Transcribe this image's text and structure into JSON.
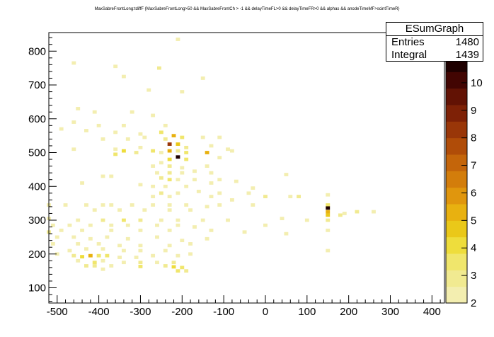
{
  "title": "MaxSabreFrontLong:tdiffF {MaxSabreFrontLong>50 && MaxSabreFrontCh > -1 && delayTimeFL>0 && delayTimeFR>0 && alphas && anodeTimeMF>scintTimeR}",
  "stats": {
    "name": "ESumGraph",
    "rows": [
      {
        "label": "Entries",
        "value": "1480"
      },
      {
        "label": "Integral",
        "value": "1439"
      }
    ]
  },
  "colors": {
    "palette": [
      "#f3eeb0",
      "#f1ea91",
      "#f0e66c",
      "#eedd3c",
      "#eac819",
      "#e8b110",
      "#e0960d",
      "#d37d0b",
      "#c4650a",
      "#b04c08",
      "#993608",
      "#7e2106",
      "#621204",
      "#420502",
      "#1e0000"
    ]
  },
  "chart_data": {
    "type": "heatmap",
    "xlim": [
      -520,
      430
    ],
    "ylim": [
      55,
      855
    ],
    "x_ticks": [
      -500,
      -400,
      -300,
      -200,
      -100,
      0,
      100,
      200,
      300,
      400
    ],
    "y_ticks": [
      100,
      200,
      300,
      400,
      500,
      600,
      700,
      800
    ],
    "z_range": [
      2,
      11
    ],
    "z_ticks": [
      2,
      3,
      4,
      5,
      6,
      7,
      8,
      9,
      10
    ],
    "z_top_partial_label": "11",
    "bin_size": [
      10,
      10
    ],
    "grid": false,
    "legend": "none",
    "cells": [
      [
        -210,
        835,
        1
      ],
      [
        -460,
        765,
        1
      ],
      [
        -360,
        755,
        1
      ],
      [
        -255,
        750,
        2
      ],
      [
        -340,
        725,
        1
      ],
      [
        -150,
        720,
        1
      ],
      [
        -280,
        685,
        1
      ],
      [
        -200,
        680,
        1
      ],
      [
        -450,
        630,
        1
      ],
      [
        -410,
        620,
        1
      ],
      [
        -320,
        620,
        1
      ],
      [
        -270,
        610,
        1
      ],
      [
        -460,
        590,
        1
      ],
      [
        -400,
        580,
        1
      ],
      [
        -340,
        580,
        1
      ],
      [
        -240,
        580,
        1
      ],
      [
        -490,
        570,
        1
      ],
      [
        -430,
        565,
        1
      ],
      [
        -360,
        560,
        1
      ],
      [
        -300,
        555,
        1
      ],
      [
        -250,
        560,
        3
      ],
      [
        -390,
        540,
        1
      ],
      [
        -330,
        540,
        1
      ],
      [
        -290,
        545,
        1
      ],
      [
        -220,
        550,
        6
      ],
      [
        -200,
        545,
        3
      ],
      [
        -150,
        545,
        1
      ],
      [
        -240,
        540,
        2
      ],
      [
        -110,
        545,
        1
      ],
      [
        -460,
        510,
        1
      ],
      [
        -360,
        510,
        1
      ],
      [
        -300,
        515,
        1
      ],
      [
        -230,
        525,
        11
      ],
      [
        -210,
        525,
        5
      ],
      [
        -190,
        515,
        2
      ],
      [
        -130,
        520,
        1
      ],
      [
        -90,
        510,
        1
      ],
      [
        -340,
        505,
        4
      ],
      [
        -270,
        505,
        3
      ],
      [
        -230,
        505,
        6
      ],
      [
        -210,
        505,
        2
      ],
      [
        -310,
        500,
        2
      ],
      [
        -250,
        500,
        1
      ],
      [
        -190,
        500,
        3
      ],
      [
        -140,
        500,
        6
      ],
      [
        -80,
        505,
        1
      ],
      [
        -360,
        495,
        3
      ],
      [
        -210,
        487,
        15
      ],
      [
        -230,
        480,
        4
      ],
      [
        -190,
        480,
        3
      ],
      [
        -110,
        485,
        1
      ],
      [
        -250,
        470,
        1
      ],
      [
        -270,
        460,
        1
      ],
      [
        -230,
        460,
        2
      ],
      [
        -200,
        455,
        1
      ],
      [
        -140,
        460,
        1
      ],
      [
        -260,
        440,
        1
      ],
      [
        -230,
        440,
        2
      ],
      [
        -200,
        440,
        1
      ],
      [
        -170,
        445,
        1
      ],
      [
        -130,
        440,
        1
      ],
      [
        -390,
        430,
        1
      ],
      [
        -370,
        430,
        1
      ],
      [
        -250,
        425,
        2
      ],
      [
        -230,
        420,
        3
      ],
      [
        -210,
        420,
        1
      ],
      [
        -170,
        420,
        1
      ],
      [
        -110,
        420,
        1
      ],
      [
        -440,
        410,
        1
      ],
      [
        -300,
        405,
        1
      ],
      [
        -270,
        400,
        1
      ],
      [
        -240,
        400,
        1
      ],
      [
        -190,
        400,
        1
      ],
      [
        -130,
        410,
        1
      ],
      [
        -70,
        415,
        1
      ],
      [
        -30,
        395,
        1
      ],
      [
        50,
        435,
        1
      ],
      [
        -250,
        380,
        2
      ],
      [
        -210,
        380,
        1
      ],
      [
        -160,
        385,
        1
      ],
      [
        -110,
        380,
        1
      ],
      [
        -40,
        380,
        1
      ],
      [
        -270,
        370,
        1
      ],
      [
        -230,
        370,
        1
      ],
      [
        -130,
        370,
        1
      ],
      [
        -80,
        360,
        1
      ],
      [
        0,
        370,
        2
      ],
      [
        60,
        370,
        1
      ],
      [
        80,
        370,
        2
      ],
      [
        150,
        375,
        1
      ],
      [
        -520,
        345,
        1
      ],
      [
        -480,
        345,
        1
      ],
      [
        -430,
        345,
        1
      ],
      [
        -390,
        345,
        1
      ],
      [
        -370,
        345,
        1
      ],
      [
        -320,
        345,
        1
      ],
      [
        -270,
        345,
        1
      ],
      [
        -230,
        345,
        1
      ],
      [
        -190,
        345,
        1
      ],
      [
        -140,
        340,
        1
      ],
      [
        -110,
        345,
        1
      ],
      [
        -30,
        345,
        1
      ],
      [
        -410,
        330,
        1
      ],
      [
        -350,
        330,
        1
      ],
      [
        -290,
        330,
        1
      ],
      [
        -230,
        330,
        1
      ],
      [
        -180,
        330,
        1
      ],
      [
        -520,
        305,
        1
      ],
      [
        -450,
        300,
        1
      ],
      [
        -390,
        300,
        2
      ],
      [
        -340,
        300,
        3
      ],
      [
        -300,
        300,
        2
      ],
      [
        -250,
        300,
        1
      ],
      [
        -210,
        300,
        1
      ],
      [
        -150,
        300,
        1
      ],
      [
        -90,
        300,
        1
      ],
      [
        40,
        305,
        1
      ],
      [
        100,
        300,
        1
      ],
      [
        150,
        345,
        3
      ],
      [
        150,
        336,
        15
      ],
      [
        150,
        325,
        6
      ],
      [
        150,
        315,
        5
      ],
      [
        150,
        300,
        2
      ],
      [
        180,
        315,
        2
      ],
      [
        190,
        320,
        1
      ],
      [
        220,
        325,
        2
      ],
      [
        260,
        325,
        1
      ],
      [
        -510,
        285,
        1
      ],
      [
        -470,
        285,
        1
      ],
      [
        -420,
        285,
        1
      ],
      [
        -370,
        285,
        1
      ],
      [
        -330,
        285,
        1
      ],
      [
        -260,
        285,
        1
      ],
      [
        -210,
        285,
        1
      ],
      [
        -170,
        280,
        1
      ],
      [
        0,
        285,
        1
      ],
      [
        -520,
        265,
        2
      ],
      [
        -490,
        270,
        1
      ],
      [
        -440,
        270,
        1
      ],
      [
        -370,
        270,
        1
      ],
      [
        -300,
        270,
        1
      ],
      [
        -230,
        270,
        1
      ],
      [
        -130,
        270,
        1
      ],
      [
        -50,
        265,
        1
      ],
      [
        50,
        260,
        1
      ],
      [
        150,
        270,
        1
      ],
      [
        -500,
        250,
        1
      ],
      [
        -460,
        250,
        1
      ],
      [
        -420,
        245,
        1
      ],
      [
        -380,
        250,
        1
      ],
      [
        -330,
        245,
        1
      ],
      [
        -260,
        250,
        1
      ],
      [
        -200,
        240,
        1
      ],
      [
        -140,
        245,
        1
      ],
      [
        -510,
        230,
        1
      ],
      [
        -450,
        230,
        1
      ],
      [
        -400,
        230,
        1
      ],
      [
        -350,
        225,
        1
      ],
      [
        -300,
        225,
        1
      ],
      [
        -230,
        225,
        1
      ],
      [
        -180,
        230,
        1
      ],
      [
        -470,
        210,
        1
      ],
      [
        -430,
        215,
        1
      ],
      [
        -390,
        215,
        1
      ],
      [
        -340,
        210,
        1
      ],
      [
        -300,
        210,
        1
      ],
      [
        -240,
        210,
        1
      ],
      [
        150,
        210,
        1
      ],
      [
        -500,
        200,
        1
      ],
      [
        -460,
        195,
        2
      ],
      [
        -440,
        192,
        4
      ],
      [
        -420,
        195,
        6
      ],
      [
        -400,
        195,
        3
      ],
      [
        -380,
        195,
        3
      ],
      [
        -350,
        190,
        1
      ],
      [
        -310,
        190,
        1
      ],
      [
        -270,
        195,
        1
      ],
      [
        -210,
        195,
        1
      ],
      [
        -180,
        200,
        1
      ],
      [
        -450,
        180,
        1
      ],
      [
        -410,
        175,
        3
      ],
      [
        -390,
        180,
        1
      ],
      [
        -340,
        175,
        1
      ],
      [
        -300,
        175,
        2
      ],
      [
        -260,
        175,
        1
      ],
      [
        -220,
        175,
        2
      ],
      [
        -430,
        165,
        2
      ],
      [
        -410,
        165,
        2
      ],
      [
        -370,
        165,
        1
      ],
      [
        -300,
        163,
        3
      ],
      [
        -240,
        165,
        2
      ],
      [
        -220,
        162,
        4
      ],
      [
        -200,
        160,
        3
      ],
      [
        -390,
        155,
        1
      ],
      [
        -210,
        150,
        3
      ],
      [
        -190,
        150,
        2
      ]
    ]
  }
}
